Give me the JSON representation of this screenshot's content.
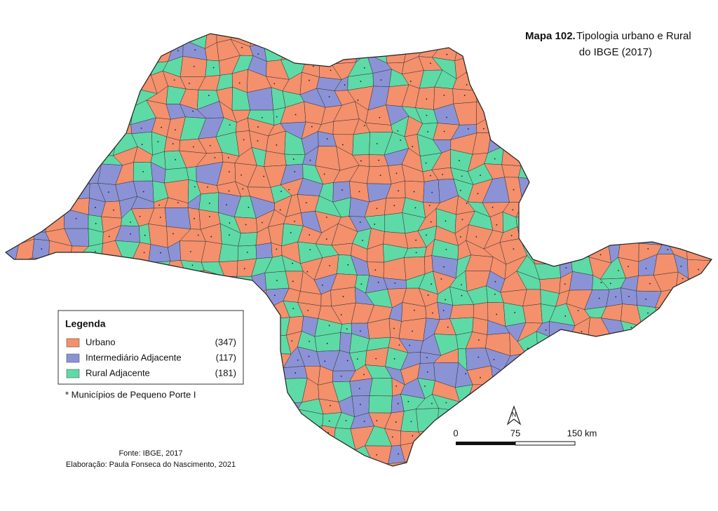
{
  "title": {
    "bold": "Mapa 102.",
    "line1": "Tipologia urbano e Rural",
    "line2": "do IBGE  (2017)"
  },
  "legend": {
    "title": "Legenda",
    "items": [
      {
        "label": "Urbano",
        "count": "(347)",
        "color": "#f4906c"
      },
      {
        "label": "Intermediário Adjacente",
        "count": "(117)",
        "color": "#8b93d6"
      },
      {
        "label": "Rural Adjacente",
        "count": "(181)",
        "color": "#5edaa6"
      }
    ]
  },
  "note": "* Municípios de Pequeno Porte I",
  "source": {
    "line1": "Fonte: IBGE, 2017",
    "line2": "Elaboração: Paula Fonseca do Nascimento, 2021"
  },
  "scale_bar": {
    "labels": [
      "0",
      "75",
      "150 km"
    ]
  },
  "north_arrow": "N"
}
